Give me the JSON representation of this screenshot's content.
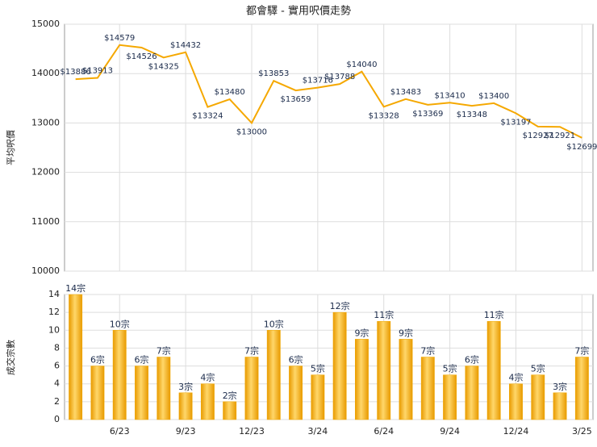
{
  "chart_data": [
    {
      "type": "line",
      "title": "都會驛 - 實用呎價走勢",
      "y_label": "平均呎價",
      "color": "#f5a800",
      "values": [
        13886,
        13913,
        14579,
        14526,
        14325,
        14432,
        13324,
        13480,
        13000,
        13853,
        13659,
        13716,
        13788,
        14040,
        13328,
        13483,
        13369,
        13410,
        13348,
        13400,
        13197,
        12927,
        12921,
        12699
      ],
      "value_labels": [
        "$13886",
        "$13913",
        "$14579",
        "$14526",
        "$14325",
        "$14432",
        "$13324",
        "$13480",
        "$13000",
        "$13853",
        "$13659",
        "$13716",
        "$13788",
        "$14040",
        "$13328",
        "$13483",
        "$13369",
        "$13410",
        "$13348",
        "$13400",
        "$13197",
        "$12927",
        "$12921",
        "$12699"
      ],
      "ylim": [
        10000,
        15000
      ],
      "yticks": [
        10000,
        11000,
        12000,
        13000,
        14000,
        15000
      ],
      "grid": true
    },
    {
      "type": "bar",
      "y_label": "成交宗數",
      "color": "#f2a900",
      "categories": [
        null,
        null,
        "6/23",
        null,
        null,
        "9/23",
        null,
        null,
        "12/23",
        null,
        null,
        "3/24",
        null,
        null,
        "6/24",
        null,
        null,
        "9/24",
        null,
        null,
        "12/24",
        null,
        null,
        "3/25"
      ],
      "values": [
        14,
        6,
        10,
        6,
        7,
        3,
        4,
        2,
        7,
        10,
        6,
        5,
        12,
        9,
        11,
        9,
        7,
        5,
        6,
        11,
        4,
        5,
        3,
        7
      ],
      "value_labels": [
        "14宗",
        "6宗",
        "10宗",
        "6宗",
        "7宗",
        "3宗",
        "4宗",
        "2宗",
        "7宗",
        "10宗",
        "6宗",
        "5宗",
        "12宗",
        "9宗",
        "11宗",
        "9宗",
        "7宗",
        "5宗",
        "6宗",
        "11宗",
        "4宗",
        "5宗",
        "3宗",
        "7宗"
      ],
      "ylim": [
        0,
        14
      ],
      "yticks": [
        0,
        2,
        4,
        6,
        8,
        10,
        12,
        14
      ],
      "grid": true
    }
  ]
}
